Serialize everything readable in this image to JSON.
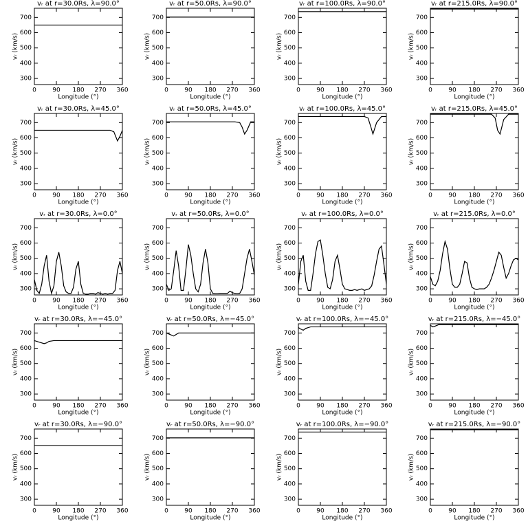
{
  "chart_data": [
    {
      "type": "line",
      "title": "vᵣ at r=30.0Rs, λ=90.0°",
      "xlabel": "Longitude (°)",
      "ylabel": "vᵣ (km/s)",
      "x": [
        0,
        360
      ],
      "values": [
        650,
        650
      ],
      "xlim": [
        0,
        360
      ],
      "ylim": [
        260,
        760
      ],
      "xticks": [
        0,
        90,
        180,
        270,
        360
      ],
      "yticks": [
        300,
        400,
        500,
        600,
        700
      ],
      "color": "#000000"
    },
    {
      "type": "line",
      "title": "vᵣ at r=50.0Rs, λ=90.0°",
      "xlabel": "Longitude (°)",
      "ylabel": "vᵣ (km/s)",
      "x": [
        0,
        360
      ],
      "values": [
        702,
        702
      ],
      "xlim": [
        0,
        360
      ],
      "ylim": [
        260,
        760
      ],
      "xticks": [
        0,
        90,
        180,
        270,
        360
      ],
      "yticks": [
        300,
        400,
        500,
        600,
        700
      ],
      "color": "#000000"
    },
    {
      "type": "line",
      "title": "vᵣ at r=100.0Rs, λ=90.0°",
      "xlabel": "Longitude (°)",
      "ylabel": "vᵣ (km/s)",
      "x": [
        0,
        360
      ],
      "values": [
        738,
        738
      ],
      "xlim": [
        0,
        360
      ],
      "ylim": [
        260,
        760
      ],
      "xticks": [
        0,
        90,
        180,
        270,
        360
      ],
      "yticks": [
        300,
        400,
        500,
        600,
        700
      ],
      "color": "#000000"
    },
    {
      "type": "line",
      "title": "vᵣ at r=215.0Rs, λ=90.0°",
      "xlabel": "Longitude (°)",
      "ylabel": "vᵣ (km/s)",
      "x": [
        0,
        360
      ],
      "values": [
        755,
        755
      ],
      "xlim": [
        0,
        360
      ],
      "ylim": [
        260,
        760
      ],
      "xticks": [
        0,
        90,
        180,
        270,
        360
      ],
      "yticks": [
        300,
        400,
        500,
        600,
        700
      ],
      "color": "#000000"
    },
    {
      "type": "line",
      "title": "vᵣ at r=30.0Rs, λ=45.0°",
      "xlabel": "Longitude (°)",
      "ylabel": "vᵣ (km/s)",
      "x": [
        0,
        310,
        325,
        335,
        340,
        350,
        360
      ],
      "values": [
        650,
        650,
        640,
        600,
        580,
        610,
        650
      ],
      "xlim": [
        0,
        360
      ],
      "ylim": [
        260,
        760
      ],
      "xticks": [
        0,
        90,
        180,
        270,
        360
      ],
      "yticks": [
        300,
        400,
        500,
        600,
        700
      ],
      "color": "#000000"
    },
    {
      "type": "line",
      "title": "vᵣ at r=50.0Rs, λ=45.0°",
      "xlabel": "Longitude (°)",
      "ylabel": "vᵣ (km/s)",
      "x": [
        0,
        280,
        300,
        310,
        320,
        330,
        345,
        360
      ],
      "values": [
        705,
        705,
        700,
        670,
        625,
        650,
        705,
        705
      ],
      "xlim": [
        0,
        360
      ],
      "ylim": [
        260,
        760
      ],
      "xticks": [
        0,
        90,
        180,
        270,
        360
      ],
      "yticks": [
        300,
        400,
        500,
        600,
        700
      ],
      "color": "#000000"
    },
    {
      "type": "line",
      "title": "vᵣ at r=100.0Rs, λ=45.0°",
      "xlabel": "Longitude (°)",
      "ylabel": "vᵣ (km/s)",
      "x": [
        0,
        270,
        285,
        295,
        305,
        320,
        340,
        360
      ],
      "values": [
        740,
        740,
        730,
        680,
        625,
        700,
        740,
        740
      ],
      "xlim": [
        0,
        360
      ],
      "ylim": [
        260,
        760
      ],
      "xticks": [
        0,
        90,
        180,
        270,
        360
      ],
      "yticks": [
        300,
        400,
        500,
        600,
        700
      ],
      "color": "#000000"
    },
    {
      "type": "line",
      "title": "vᵣ at r=215.0Rs, λ=45.0°",
      "xlabel": "Longitude (°)",
      "ylabel": "vᵣ (km/s)",
      "x": [
        0,
        250,
        265,
        275,
        285,
        300,
        320,
        360
      ],
      "values": [
        755,
        755,
        730,
        650,
        625,
        720,
        755,
        755
      ],
      "xlim": [
        0,
        360
      ],
      "ylim": [
        260,
        760
      ],
      "xticks": [
        0,
        90,
        180,
        270,
        360
      ],
      "yticks": [
        300,
        400,
        500,
        600,
        700
      ],
      "color": "#000000"
    },
    {
      "type": "line",
      "title": "vᵣ at r=30.0Rs, λ=0.0°",
      "xlabel": "Longitude (°)",
      "ylabel": "vᵣ (km/s)",
      "x": [
        0,
        10,
        20,
        30,
        40,
        50,
        60,
        70,
        80,
        90,
        100,
        110,
        120,
        130,
        140,
        150,
        160,
        170,
        180,
        190,
        200,
        210,
        220,
        230,
        240,
        250,
        260,
        270,
        280,
        290,
        300,
        310,
        320,
        330,
        340,
        350,
        360
      ],
      "values": [
        360,
        290,
        270,
        330,
        450,
        520,
        350,
        270,
        320,
        480,
        540,
        450,
        320,
        280,
        270,
        270,
        310,
        430,
        480,
        330,
        270,
        265,
        265,
        270,
        270,
        265,
        275,
        270,
        265,
        270,
        265,
        270,
        270,
        290,
        420,
        480,
        400
      ],
      "xlim": [
        0,
        360
      ],
      "ylim": [
        260,
        760
      ],
      "xticks": [
        0,
        90,
        180,
        270,
        360
      ],
      "yticks": [
        300,
        400,
        500,
        600,
        700
      ],
      "color": "#000000"
    },
    {
      "type": "line",
      "title": "vᵣ at r=50.0Rs, λ=0.0°",
      "xlabel": "Longitude (°)",
      "ylabel": "vᵣ (km/s)",
      "x": [
        0,
        10,
        20,
        30,
        40,
        50,
        60,
        70,
        80,
        90,
        100,
        110,
        120,
        130,
        140,
        150,
        160,
        170,
        180,
        190,
        200,
        210,
        220,
        230,
        240,
        250,
        260,
        270,
        280,
        290,
        300,
        310,
        320,
        330,
        340,
        350,
        360
      ],
      "values": [
        330,
        290,
        300,
        420,
        550,
        450,
        290,
        290,
        430,
        590,
        520,
        400,
        300,
        280,
        330,
        470,
        560,
        470,
        300,
        270,
        268,
        268,
        270,
        270,
        270,
        270,
        285,
        275,
        270,
        268,
        270,
        300,
        400,
        500,
        560,
        480,
        390
      ],
      "xlim": [
        0,
        360
      ],
      "ylim": [
        260,
        760
      ],
      "xticks": [
        0,
        90,
        180,
        270,
        360
      ],
      "yticks": [
        300,
        400,
        500,
        600,
        700
      ],
      "color": "#000000"
    },
    {
      "type": "line",
      "title": "vᵣ at r=100.0Rs, λ=0.0°",
      "xlabel": "Longitude (°)",
      "ylabel": "vᵣ (km/s)",
      "x": [
        0,
        10,
        20,
        30,
        40,
        50,
        60,
        70,
        80,
        90,
        100,
        110,
        120,
        130,
        140,
        150,
        160,
        170,
        180,
        190,
        200,
        210,
        220,
        230,
        240,
        250,
        260,
        270,
        280,
        290,
        300,
        310,
        320,
        330,
        340,
        350,
        360
      ],
      "values": [
        330,
        480,
        520,
        350,
        290,
        290,
        400,
        530,
        610,
        620,
        520,
        400,
        310,
        300,
        360,
        480,
        520,
        430,
        330,
        300,
        295,
        290,
        290,
        295,
        290,
        295,
        300,
        290,
        295,
        300,
        320,
        390,
        480,
        560,
        580,
        460,
        330
      ],
      "xlim": [
        0,
        360
      ],
      "ylim": [
        260,
        760
      ],
      "xticks": [
        0,
        90,
        180,
        270,
        360
      ],
      "yticks": [
        300,
        400,
        500,
        600,
        700
      ],
      "color": "#000000"
    },
    {
      "type": "line",
      "title": "vᵣ at r=215.0Rs, λ=0.0°",
      "xlabel": "Longitude (°)",
      "ylabel": "vᵣ (km/s)",
      "x": [
        0,
        10,
        20,
        30,
        40,
        50,
        60,
        70,
        80,
        90,
        100,
        110,
        120,
        130,
        140,
        150,
        160,
        170,
        180,
        190,
        200,
        210,
        220,
        230,
        240,
        250,
        260,
        270,
        280,
        290,
        300,
        310,
        320,
        330,
        340,
        350,
        360
      ],
      "values": [
        380,
        330,
        320,
        350,
        420,
        530,
        610,
        560,
        430,
        330,
        310,
        310,
        330,
        400,
        480,
        470,
        370,
        310,
        300,
        295,
        300,
        300,
        300,
        310,
        330,
        370,
        420,
        480,
        540,
        520,
        440,
        370,
        400,
        450,
        490,
        500,
        490
      ],
      "xlim": [
        0,
        360
      ],
      "ylim": [
        260,
        760
      ],
      "xticks": [
        0,
        90,
        180,
        270,
        360
      ],
      "yticks": [
        300,
        400,
        500,
        600,
        700
      ],
      "color": "#000000"
    },
    {
      "type": "line",
      "title": "vᵣ at r=30.0Rs, λ=−45.0°",
      "xlabel": "Longitude (°)",
      "ylabel": "vᵣ (km/s)",
      "x": [
        0,
        20,
        40,
        50,
        60,
        80,
        360
      ],
      "values": [
        650,
        640,
        630,
        635,
        645,
        650,
        650
      ],
      "xlim": [
        0,
        360
      ],
      "ylim": [
        260,
        760
      ],
      "xticks": [
        0,
        90,
        180,
        270,
        360
      ],
      "yticks": [
        300,
        400,
        500,
        600,
        700
      ],
      "color": "#000000"
    },
    {
      "type": "line",
      "title": "vᵣ at r=50.0Rs, λ=−45.0°",
      "xlabel": "Longitude (°)",
      "ylabel": "vᵣ (km/s)",
      "x": [
        0,
        15,
        30,
        40,
        50,
        360
      ],
      "values": [
        700,
        690,
        680,
        690,
        700,
        700
      ],
      "xlim": [
        0,
        360
      ],
      "ylim": [
        260,
        760
      ],
      "xticks": [
        0,
        90,
        180,
        270,
        360
      ],
      "yticks": [
        300,
        400,
        500,
        600,
        700
      ],
      "color": "#000000"
    },
    {
      "type": "line",
      "title": "vᵣ at r=100.0Rs, λ=−45.0°",
      "xlabel": "Longitude (°)",
      "ylabel": "vᵣ (km/s)",
      "x": [
        0,
        10,
        20,
        30,
        50,
        360
      ],
      "values": [
        735,
        725,
        718,
        730,
        740,
        740
      ],
      "xlim": [
        0,
        360
      ],
      "ylim": [
        260,
        760
      ],
      "xticks": [
        0,
        90,
        180,
        270,
        360
      ],
      "yticks": [
        300,
        400,
        500,
        600,
        700
      ],
      "color": "#000000"
    },
    {
      "type": "line",
      "title": "vᵣ at r=215.0Rs, λ=−45.0°",
      "xlabel": "Longitude (°)",
      "ylabel": "vᵣ (km/s)",
      "x": [
        0,
        10,
        20,
        35,
        360
      ],
      "values": [
        750,
        740,
        745,
        755,
        755
      ],
      "xlim": [
        0,
        360
      ],
      "ylim": [
        260,
        760
      ],
      "xticks": [
        0,
        90,
        180,
        270,
        360
      ],
      "yticks": [
        300,
        400,
        500,
        600,
        700
      ],
      "color": "#000000"
    },
    {
      "type": "line",
      "title": "vᵣ at r=30.0Rs, λ=−90.0°",
      "xlabel": "Longitude (°)",
      "ylabel": "vᵣ (km/s)",
      "x": [
        0,
        360
      ],
      "values": [
        650,
        650
      ],
      "xlim": [
        0,
        360
      ],
      "ylim": [
        260,
        760
      ],
      "xticks": [
        0,
        90,
        180,
        270,
        360
      ],
      "yticks": [
        300,
        400,
        500,
        600,
        700
      ],
      "color": "#000000"
    },
    {
      "type": "line",
      "title": "vᵣ at r=50.0Rs, λ=−90.0°",
      "xlabel": "Longitude (°)",
      "ylabel": "vᵣ (km/s)",
      "x": [
        0,
        360
      ],
      "values": [
        702,
        702
      ],
      "xlim": [
        0,
        360
      ],
      "ylim": [
        260,
        760
      ],
      "xticks": [
        0,
        90,
        180,
        270,
        360
      ],
      "yticks": [
        300,
        400,
        500,
        600,
        700
      ],
      "color": "#000000"
    },
    {
      "type": "line",
      "title": "vᵣ at r=100.0Rs, λ=−90.0°",
      "xlabel": "Longitude (°)",
      "ylabel": "vᵣ (km/s)",
      "x": [
        0,
        360
      ],
      "values": [
        740,
        740
      ],
      "xlim": [
        0,
        360
      ],
      "ylim": [
        260,
        760
      ],
      "xticks": [
        0,
        90,
        180,
        270,
        360
      ],
      "yticks": [
        300,
        400,
        500,
        600,
        700
      ],
      "color": "#000000"
    },
    {
      "type": "line",
      "title": "vᵣ at r=215.0Rs, λ=−90.0°",
      "xlabel": "Longitude (°)",
      "ylabel": "vᵣ (km/s)",
      "x": [
        0,
        360
      ],
      "values": [
        755,
        755
      ],
      "xlim": [
        0,
        360
      ],
      "ylim": [
        260,
        760
      ],
      "xticks": [
        0,
        90,
        180,
        270,
        360
      ],
      "yticks": [
        300,
        400,
        500,
        600,
        700
      ],
      "color": "#000000"
    }
  ]
}
